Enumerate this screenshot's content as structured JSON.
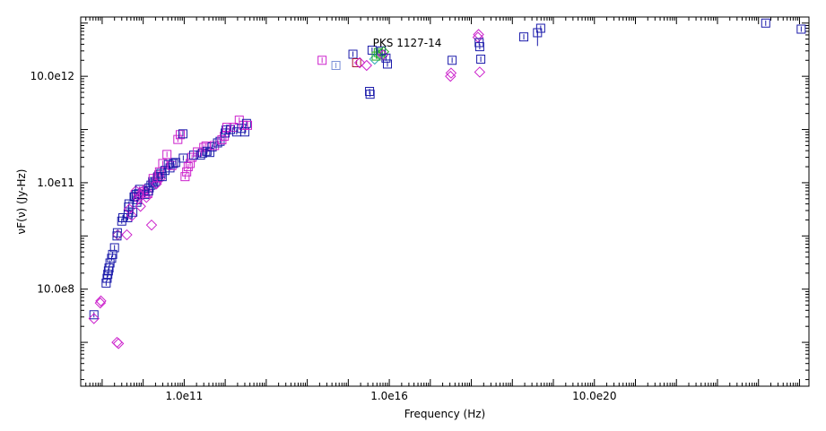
{
  "chart_data": {
    "type": "scatter",
    "title": "PKS 1127-14",
    "xlabel": "Frequency (Hz)",
    "ylabel": "νF(ν) (Jy-Hz)",
    "x_scale": "log",
    "y_scale": "log",
    "xlim": [
      300000000.0,
      1.7e+26
    ],
    "ylim": [
      15000000.0,
      130000000000000.0
    ],
    "x_ticks": [
      {
        "value": 100000000000.0,
        "label": "1.0e11"
      },
      {
        "value": 1e+16,
        "label": "1.0e16"
      },
      {
        "value": 1e+21,
        "label": "10.0e20"
      }
    ],
    "y_ticks": [
      {
        "value": 1000000000.0,
        "label": "10.0e8"
      },
      {
        "value": 100000000000.0,
        "label": "1.0e11"
      },
      {
        "value": 10000000000000.0,
        "label": "10.0e12"
      }
    ],
    "grid": false,
    "legend": "none",
    "colors": {
      "blue": "#1a1aaa",
      "magenta": "#cc22cc",
      "purple": "#8a2bb0",
      "darkred": "#aa1133",
      "green": "#22aa22",
      "lightblue": "#7a8fd6",
      "cyan": "#33aabb"
    },
    "points": [
      {
        "x": 630000000.0,
        "y": 330000000.0,
        "c": "blue",
        "m": "square"
      },
      {
        "x": 630000000.0,
        "y": 280000000.0,
        "c": "magenta",
        "m": "diamond"
      },
      {
        "x": 900000000.0,
        "y": 550000000.0,
        "c": "magenta",
        "m": "diamond"
      },
      {
        "x": 930000000.0,
        "y": 600000000.0,
        "c": "magenta",
        "m": "diamond"
      },
      {
        "x": 1250000000.0,
        "y": 1300000000.0,
        "c": "blue",
        "m": "square"
      },
      {
        "x": 1320000000.0,
        "y": 1600000000.0,
        "c": "blue",
        "m": "square"
      },
      {
        "x": 1370000000.0,
        "y": 1900000000.0,
        "c": "blue",
        "m": "square"
      },
      {
        "x": 1420000000.0,
        "y": 2200000000.0,
        "c": "blue",
        "m": "square"
      },
      {
        "x": 1470000000.0,
        "y": 2500000000.0,
        "c": "blue",
        "m": "square"
      },
      {
        "x": 1550000000.0,
        "y": 3100000000.0,
        "c": "blue",
        "m": "square"
      },
      {
        "x": 1700000000.0,
        "y": 3800000000.0,
        "c": "blue",
        "m": "square"
      },
      {
        "x": 1800000000.0,
        "y": 4500000000.0,
        "c": "blue",
        "m": "square"
      },
      {
        "x": 2000000000.0,
        "y": 6000000000.0,
        "c": "blue",
        "m": "square"
      },
      {
        "x": 2300000000.0,
        "y": 10000000000.0,
        "c": "blue",
        "m": "square"
      },
      {
        "x": 2350000000.0,
        "y": 11500000000.0,
        "c": "blue",
        "m": "square"
      },
      {
        "x": 2400000000.0,
        "y": 10500000000.0,
        "c": "purple",
        "m": "diamond"
      },
      {
        "x": 2300000000.0,
        "y": 100000000.0,
        "c": "magenta",
        "m": "diamond"
      },
      {
        "x": 2500000000.0,
        "y": 95000000.0,
        "c": "magenta",
        "m": "diamond"
      },
      {
        "x": 3000000000.0,
        "y": 19000000000.0,
        "c": "blue",
        "m": "square"
      },
      {
        "x": 3200000000.0,
        "y": 22000000000.0,
        "c": "blue",
        "m": "square"
      },
      {
        "x": 4000000000.0,
        "y": 10500000000.0,
        "c": "magenta",
        "m": "diamond"
      },
      {
        "x": 4200000000.0,
        "y": 22000000000.0,
        "c": "blue",
        "m": "square"
      },
      {
        "x": 4300000000.0,
        "y": 26000000000.0,
        "c": "blue",
        "m": "square"
      },
      {
        "x": 4400000000.0,
        "y": 35000000000.0,
        "c": "blue",
        "m": "square"
      },
      {
        "x": 4500000000.0,
        "y": 40000000000.0,
        "c": "blue",
        "m": "square"
      },
      {
        "x": 4600000000.0,
        "y": 32000000000.0,
        "c": "magenta",
        "m": "diamond"
      },
      {
        "x": 5300000000.0,
        "y": 24000000000.0,
        "c": "magenta",
        "m": "diamond"
      },
      {
        "x": 5600000000.0,
        "y": 28000000000.0,
        "c": "blue",
        "m": "square"
      },
      {
        "x": 6000000000.0,
        "y": 54000000000.0,
        "c": "blue",
        "m": "square"
      },
      {
        "x": 6300000000.0,
        "y": 55000000000.0,
        "c": "blue",
        "m": "square"
      },
      {
        "x": 6600000000.0,
        "y": 70000000000.0,
        "c": "magenta",
        "m": "diamond"
      },
      {
        "x": 6800000000.0,
        "y": 60000000000.0,
        "c": "blue",
        "m": "square"
      },
      {
        "x": 7000000000.0,
        "y": 43000000000.0,
        "c": "blue",
        "m": "square"
      },
      {
        "x": 7300000000.0,
        "y": 48000000000.0,
        "c": "blue",
        "m": "square"
      },
      {
        "x": 7600000000.0,
        "y": 62000000000.0,
        "c": "blue",
        "m": "square"
      },
      {
        "x": 7600000000.0,
        "y": 50000000000.0,
        "c": "magenta",
        "m": "diamond"
      },
      {
        "x": 7800000000.0,
        "y": 58000000000.0,
        "c": "magenta",
        "m": "diamond"
      },
      {
        "x": 8200000000.0,
        "y": 75000000000.0,
        "c": "blue",
        "m": "square"
      },
      {
        "x": 8600000000.0,
        "y": 36000000000.0,
        "c": "magenta",
        "m": "diamond"
      },
      {
        "x": 9200000000.0,
        "y": 59000000000.0,
        "c": "magenta",
        "m": "diamond"
      },
      {
        "x": 10000000000.0,
        "y": 68000000000.0,
        "c": "magenta",
        "m": "square"
      },
      {
        "x": 10700000000.0,
        "y": 74000000000.0,
        "c": "magenta",
        "m": "diamond"
      },
      {
        "x": 11000000000.0,
        "y": 60000000000.0,
        "c": "blue",
        "m": "square"
      },
      {
        "x": 11500000000.0,
        "y": 70000000000.0,
        "c": "magenta",
        "m": "diamond"
      },
      {
        "x": 12000000000.0,
        "y": 53000000000.0,
        "c": "magenta",
        "m": "diamond"
      },
      {
        "x": 13000000000.0,
        "y": 63000000000.0,
        "c": "magenta",
        "m": "square"
      },
      {
        "x": 13500000000.0,
        "y": 70000000000.0,
        "c": "blue",
        "m": "square"
      },
      {
        "x": 14000000000.0,
        "y": 80000000000.0,
        "c": "blue",
        "m": "square"
      },
      {
        "x": 15500000000.0,
        "y": 90000000000.0,
        "c": "blue",
        "m": "square"
      },
      {
        "x": 16000000000.0,
        "y": 16000000000.0,
        "c": "magenta",
        "m": "diamond"
      },
      {
        "x": 17000000000.0,
        "y": 105000000000.0,
        "c": "blue",
        "m": "square"
      },
      {
        "x": 17500000000.0,
        "y": 120000000000.0,
        "c": "magenta",
        "m": "square"
      },
      {
        "x": 18000000000.0,
        "y": 98000000000.0,
        "c": "blue",
        "m": "square"
      },
      {
        "x": 20000000000.0,
        "y": 105000000000.0,
        "c": "blue",
        "m": "square"
      },
      {
        "x": 21000000000.0,
        "y": 95000000000.0,
        "c": "magenta",
        "m": "diamond"
      },
      {
        "x": 22000000000.0,
        "y": 125000000000.0,
        "c": "magenta",
        "m": "square"
      },
      {
        "x": 23000000000.0,
        "y": 130000000000.0,
        "c": "blue",
        "m": "square"
      },
      {
        "x": 24000000000.0,
        "y": 140000000000.0,
        "c": "purple",
        "m": "square"
      },
      {
        "x": 25000000000.0,
        "y": 160000000000.0,
        "c": "magenta",
        "m": "square"
      },
      {
        "x": 26000000000.0,
        "y": 120000000000.0,
        "c": "magenta",
        "m": "diamond"
      },
      {
        "x": 27000000000.0,
        "y": 150000000000.0,
        "c": "blue",
        "m": "square"
      },
      {
        "x": 29000000000.0,
        "y": 130000000000.0,
        "c": "blue",
        "m": "square"
      },
      {
        "x": 30000000000.0,
        "y": 230000000000.0,
        "c": "magenta",
        "m": "square"
      },
      {
        "x": 34000000000.0,
        "y": 170000000000.0,
        "c": "blue",
        "m": "square"
      },
      {
        "x": 38000000000.0,
        "y": 340000000000.0,
        "c": "magenta",
        "m": "square"
      },
      {
        "x": 41000000000.0,
        "y": 220000000000.0,
        "c": "blue",
        "m": "square"
      },
      {
        "x": 45000000000.0,
        "y": 190000000000.0,
        "c": "blue",
        "m": "square"
      },
      {
        "x": 50000000000.0,
        "y": 210000000000.0,
        "c": "magenta",
        "m": "square"
      },
      {
        "x": 55000000000.0,
        "y": 230000000000.0,
        "c": "blue",
        "m": "square"
      },
      {
        "x": 62000000000.0,
        "y": 240000000000.0,
        "c": "blue",
        "m": "square"
      },
      {
        "x": 70000000000.0,
        "y": 650000000000.0,
        "c": "magenta",
        "m": "square"
      },
      {
        "x": 80000000000.0,
        "y": 800000000000.0,
        "c": "magenta",
        "m": "square"
      },
      {
        "x": 93000000000.0,
        "y": 830000000000.0,
        "c": "blue",
        "m": "square"
      },
      {
        "x": 95000000000.0,
        "y": 290000000000.0,
        "c": "blue",
        "m": "square"
      },
      {
        "x": 105000000000.0,
        "y": 130000000000.0,
        "c": "magenta",
        "m": "square"
      },
      {
        "x": 115000000000.0,
        "y": 160000000000.0,
        "c": "magenta",
        "m": "square"
      },
      {
        "x": 125000000000.0,
        "y": 200000000000.0,
        "c": "magenta",
        "m": "square"
      },
      {
        "x": 140000000000.0,
        "y": 230000000000.0,
        "c": "magenta",
        "m": "square"
      },
      {
        "x": 155000000000.0,
        "y": 300000000000.0,
        "c": "magenta",
        "m": "square"
      },
      {
        "x": 170000000000.0,
        "y": 330000000000.0,
        "c": "blue",
        "m": "square"
      },
      {
        "x": 210000000000.0,
        "y": 380000000000.0,
        "c": "magenta",
        "m": "square"
      },
      {
        "x": 250000000000.0,
        "y": 330000000000.0,
        "c": "blue",
        "m": "square"
      },
      {
        "x": 280000000000.0,
        "y": 360000000000.0,
        "c": "blue",
        "m": "square"
      },
      {
        "x": 300000000000.0,
        "y": 460000000000.0,
        "c": "magenta",
        "m": "square"
      },
      {
        "x": 340000000000.0,
        "y": 490000000000.0,
        "c": "magenta",
        "m": "square"
      },
      {
        "x": 360000000000.0,
        "y": 390000000000.0,
        "c": "blue",
        "m": "square"
      },
      {
        "x": 420000000000.0,
        "y": 370000000000.0,
        "c": "blue",
        "m": "square"
      },
      {
        "x": 480000000000.0,
        "y": 470000000000.0,
        "c": "blue",
        "m": "square"
      },
      {
        "x": 550000000000.0,
        "y": 500000000000.0,
        "c": "magenta",
        "m": "square"
      },
      {
        "x": 650000000000.0,
        "y": 560000000000.0,
        "c": "blue",
        "m": "square"
      },
      {
        "x": 750000000000.0,
        "y": 600000000000.0,
        "c": "blue",
        "m": "square"
      },
      {
        "x": 830000000000.0,
        "y": 640000000000.0,
        "c": "magenta",
        "m": "square"
      },
      {
        "x": 950000000000.0,
        "y": 750000000000.0,
        "c": "magenta",
        "m": "square"
      },
      {
        "x": 1000000000000.0,
        "y": 860000000000.0,
        "c": "blue",
        "m": "square"
      },
      {
        "x": 1050000000000.0,
        "y": 980000000000.0,
        "c": "blue",
        "m": "square"
      },
      {
        "x": 1100000000000.0,
        "y": 1100000000000.0,
        "c": "magenta",
        "m": "square"
      },
      {
        "x": 1350000000000.0,
        "y": 1000000000000.0,
        "c": "blue",
        "m": "square"
      },
      {
        "x": 1600000000000.0,
        "y": 1100000000000.0,
        "c": "magenta",
        "m": "square"
      },
      {
        "x": 1900000000000.0,
        "y": 900000000000.0,
        "c": "blue",
        "m": "square"
      },
      {
        "x": 2200000000000.0,
        "y": 1500000000000.0,
        "c": "magenta",
        "m": "square"
      },
      {
        "x": 2500000000000.0,
        "y": 1050000000000.0,
        "c": "blue",
        "m": "square"
      },
      {
        "x": 2800000000000.0,
        "y": 1200000000000.0,
        "c": "magenta",
        "m": "square"
      },
      {
        "x": 3000000000000.0,
        "y": 900000000000.0,
        "c": "blue",
        "m": "square"
      },
      {
        "x": 3300000000000.0,
        "y": 1300000000000.0,
        "c": "blue",
        "m": "square"
      },
      {
        "x": 3500000000000.0,
        "y": 1200000000000.0,
        "c": "magenta",
        "m": "square"
      },
      {
        "x": 230000000000000.0,
        "y": 20000000000000.0,
        "c": "magenta",
        "m": "square"
      },
      {
        "x": 500000000000000.0,
        "y": 16000000000000.0,
        "c": "lightblue",
        "m": "square"
      },
      {
        "x": 1300000000000000.0,
        "y": 26000000000000.0,
        "c": "blue",
        "m": "square"
      },
      {
        "x": 1600000000000000.0,
        "y": 18000000000000.0,
        "c": "darkred",
        "m": "square"
      },
      {
        "x": 1900000000000000.0,
        "y": 18000000000000.0,
        "c": "magenta",
        "m": "diamond"
      },
      {
        "x": 2800000000000000.0,
        "y": 16000000000000.0,
        "c": "magenta",
        "m": "diamond"
      },
      {
        "x": 3800000000000000.0,
        "y": 31000000000000.0,
        "c": "blue",
        "m": "square"
      },
      {
        "x": 4400000000000000.0,
        "y": 21000000000000.0,
        "c": "cyan",
        "m": "diamond"
      },
      {
        "x": 4800000000000000.0,
        "y": 24000000000000.0,
        "c": "green",
        "m": "square"
      },
      {
        "x": 5400000000000000.0,
        "y": 28000000000000.0,
        "c": "green",
        "m": "square"
      },
      {
        "x": 6100000000000000.0,
        "y": 26000000000000.0,
        "c": "green",
        "m": "square"
      },
      {
        "x": 6400000000000000.0,
        "y": 30000000000000.0,
        "c": "blue",
        "m": "square"
      },
      {
        "x": 7000000000000000.0,
        "y": 25000000000000.0,
        "c": "magenta",
        "m": "diamond"
      },
      {
        "x": 7300000000000000.0,
        "y": 29000000000000.0,
        "c": "green",
        "m": "diamond"
      },
      {
        "x": 8300000000000000.0,
        "y": 22000000000000.0,
        "c": "blue",
        "m": "square"
      },
      {
        "x": 9000000000000000.0,
        "y": 17000000000000.0,
        "c": "blue",
        "m": "square"
      },
      {
        "x": 3300000000000000.0,
        "y": 5200000000000.0,
        "c": "blue",
        "m": "square"
      },
      {
        "x": 3400000000000000.0,
        "y": 4600000000000.0,
        "c": "blue",
        "m": "square"
      },
      {
        "x": 3.1e+17,
        "y": 10000000000000.0,
        "c": "magenta",
        "m": "diamond"
      },
      {
        "x": 3.2e+17,
        "y": 11500000000000.0,
        "c": "magenta",
        "m": "diamond"
      },
      {
        "x": 3.4e+17,
        "y": 20000000000000.0,
        "c": "blue",
        "m": "square"
      },
      {
        "x": 1.45e+18,
        "y": 54000000000000.0,
        "c": "magenta",
        "m": "diamond"
      },
      {
        "x": 1.5e+18,
        "y": 61000000000000.0,
        "c": "magenta",
        "m": "diamond"
      },
      {
        "x": 1.55e+18,
        "y": 43000000000000.0,
        "c": "blue",
        "m": "square"
      },
      {
        "x": 1.6e+18,
        "y": 36000000000000.0,
        "c": "blue",
        "m": "square"
      },
      {
        "x": 1.6e+18,
        "y": 12000000000000.0,
        "c": "magenta",
        "m": "diamond"
      },
      {
        "x": 1.7e+18,
        "y": 21000000000000.0,
        "c": "blue",
        "m": "square"
      },
      {
        "x": 1.9e+19,
        "y": 55000000000000.0,
        "c": "blue",
        "m": "square"
      },
      {
        "x": 4.1e+19,
        "y": 66000000000000.0,
        "c": "blue",
        "m": "square",
        "yerr": 0.25
      },
      {
        "x": 4.9e+19,
        "y": 80000000000000.0,
        "c": "blue",
        "m": "square"
      },
      {
        "x": 1.5e+25,
        "y": 100000000000000.0,
        "c": "blue",
        "m": "square"
      },
      {
        "x": 1.1e+26,
        "y": 77000000000000.0,
        "c": "blue",
        "m": "square"
      }
    ]
  }
}
